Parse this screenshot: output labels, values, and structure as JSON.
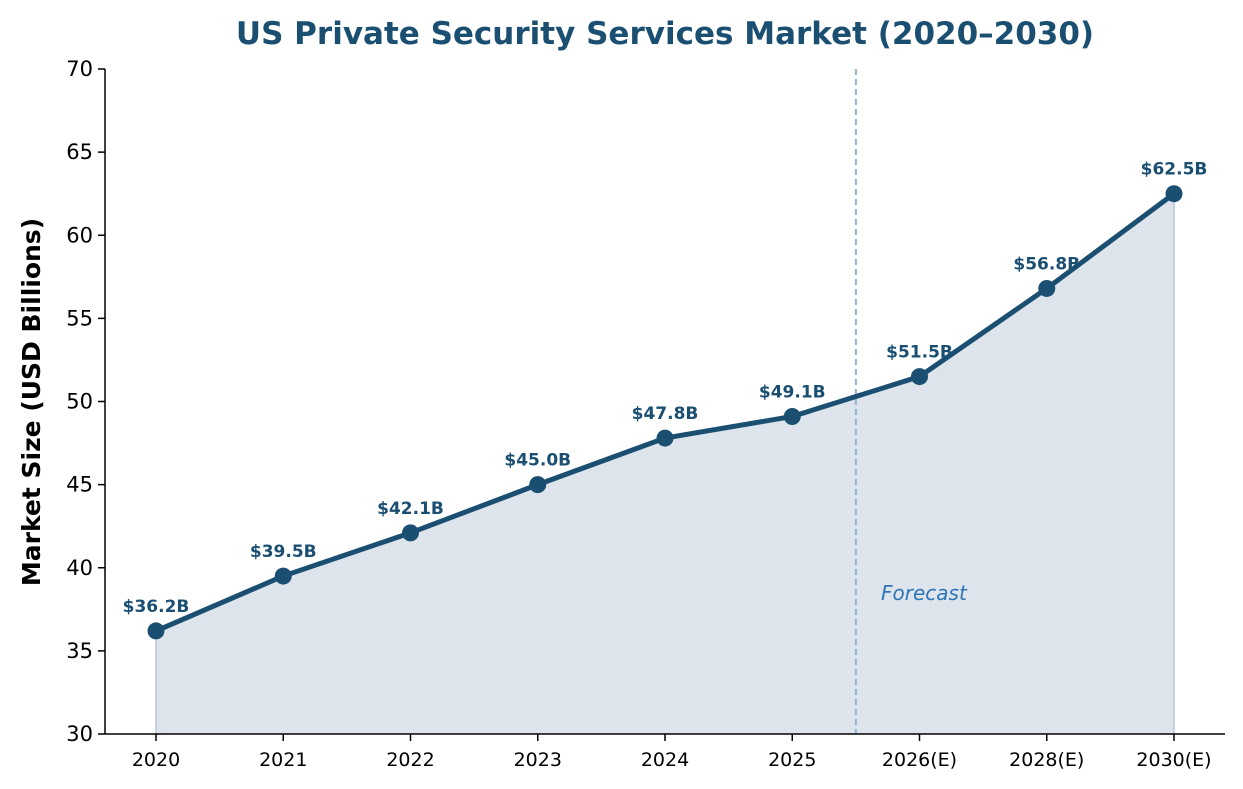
{
  "chart_data": {
    "type": "line",
    "title": "US Private Security Services Market (2020–2030)",
    "xlabel": "",
    "ylabel": "Market Size (USD Billions)",
    "categories": [
      "2020",
      "2021",
      "2022",
      "2023",
      "2024",
      "2025",
      "2026(E)",
      "2028(E)",
      "2030(E)"
    ],
    "values": [
      36.2,
      39.5,
      42.1,
      45.0,
      47.8,
      49.1,
      51.5,
      56.8,
      62.5
    ],
    "data_labels": [
      "$36.2B",
      "$39.5B",
      "$42.1B",
      "$45.0B",
      "$47.8B",
      "$49.1B",
      "$51.5B",
      "$56.8B",
      "$62.5B"
    ],
    "ylim": [
      30,
      70
    ],
    "yticks": [
      30,
      35,
      40,
      45,
      50,
      55,
      60,
      65,
      70
    ],
    "forecast_divider_after_index": 5,
    "annotation": "Forecast",
    "area_fill": true,
    "grid": false,
    "colors": {
      "line": "#1b4f72",
      "area": "#dde4ec",
      "divider": "#8fb3d1",
      "annotation": "#2e75b6",
      "title": "#1b4f72"
    }
  }
}
